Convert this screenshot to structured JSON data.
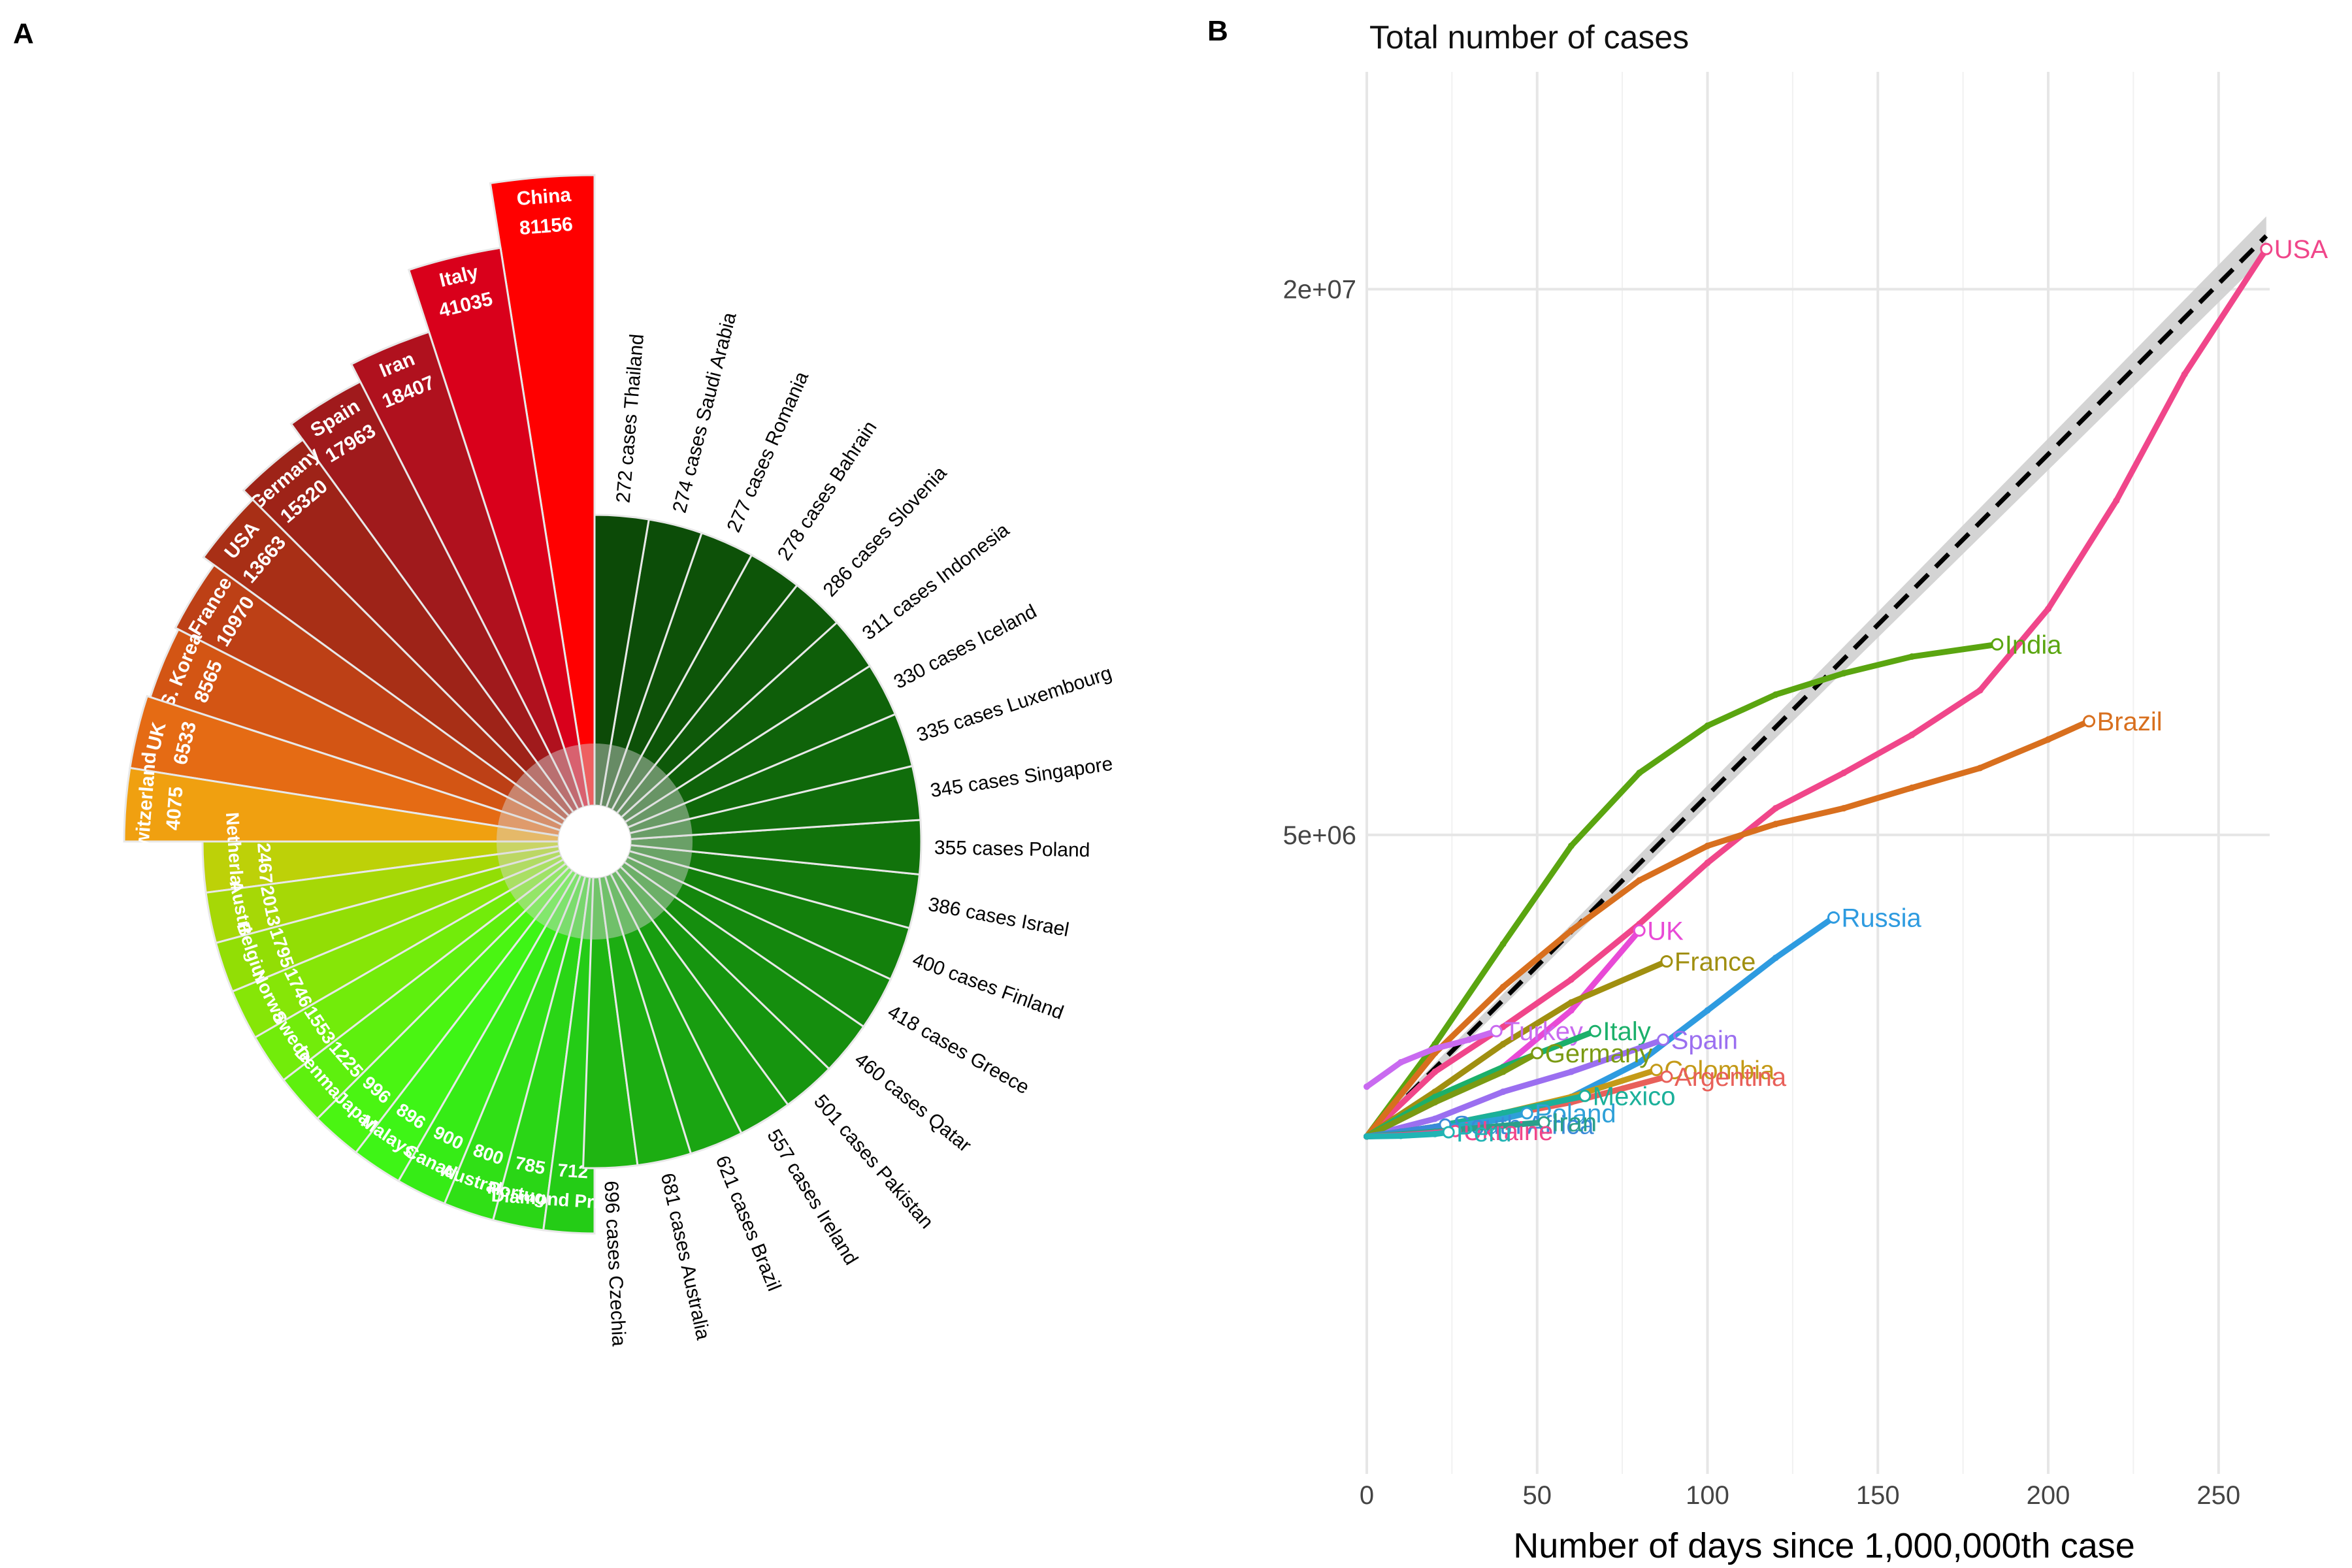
{
  "panel_a": {
    "label": "A",
    "chart_data": {
      "type": "bar",
      "polar": true,
      "top_countries": [
        {
          "name": "China",
          "value": 81156,
          "color": "#ff0000"
        },
        {
          "name": "Italy",
          "value": 41035,
          "color": "#d9001b"
        },
        {
          "name": "Iran",
          "value": 18407,
          "color": "#b0111e"
        },
        {
          "name": "Spain",
          "value": 17963,
          "color": "#a01a1c"
        },
        {
          "name": "Germany",
          "value": 15320,
          "color": "#9e2318"
        },
        {
          "name": "USA",
          "value": 13663,
          "color": "#a82f16"
        },
        {
          "name": "France",
          "value": 10970,
          "color": "#bd4016"
        },
        {
          "name": "S. Korea",
          "value": 8565,
          "color": "#d35514"
        },
        {
          "name": "UK",
          "value": 6533,
          "color": "#e56b14"
        },
        {
          "name": "Switzerland",
          "value": 4075,
          "color": "#f0a010"
        }
      ],
      "green_countries": [
        {
          "name": "Netherlands",
          "value": 2467,
          "color": "#bdd108"
        },
        {
          "name": "Austria",
          "value": 2013,
          "color": "#a6d806"
        },
        {
          "name": "Belgium",
          "value": 1795,
          "color": "#92de05"
        },
        {
          "name": "Norway",
          "value": 1746,
          "color": "#86e607"
        },
        {
          "name": "Sweden",
          "value": 1553,
          "color": "#72ec0a"
        },
        {
          "name": "Denmark",
          "value": 1225,
          "color": "#5ef00e"
        },
        {
          "name": "Japan",
          "value": 996,
          "color": "#4af512"
        },
        {
          "name": "Malaysia",
          "value": 896,
          "color": "#3ef516"
        },
        {
          "name": "Canada",
          "value": 900,
          "color": "#36ec16"
        },
        {
          "name": "Australia",
          "value": 800,
          "color": "#30e016"
        },
        {
          "name": "Portugal",
          "value": 785,
          "color": "#2ad616"
        },
        {
          "name": "Diamond Princess",
          "value": 712,
          "color": "#24cc16"
        }
      ],
      "dark_countries_labels": [
        "696 cases Czechia",
        "681 cases Australia",
        "621 cases Brazil",
        "557 cases Ireland",
        "501 cases Pakistan",
        "460 cases Qatar",
        "418 cases Greece",
        "400 cases Finland",
        "386 cases Israel",
        "355 cases Poland",
        "345 cases Singapore",
        "335 cases Luxembourg",
        "330 cases Iceland",
        "311 cases Indonesia",
        "286 cases Slovenia",
        "278 cases Bahrain",
        "277 cases Romania",
        "274 cases Saudi Arabia",
        "272 cases Thailand"
      ]
    }
  },
  "panel_b": {
    "label": "B",
    "chart_data": {
      "type": "line",
      "title": "Total number of cases",
      "xlabel": "Number of days since 1,000,000th case",
      "ylabel": "",
      "xlim": [
        0,
        265
      ],
      "x_ticks": [
        0,
        50,
        100,
        150,
        200,
        250
      ],
      "y_ticks": [
        {
          "value": 5000000,
          "label": "5e+06"
        },
        {
          "value": 20000000,
          "label": "2e+07"
        }
      ],
      "y_scale": "sqrt",
      "trend": {
        "name": "",
        "x": [
          0,
          264
        ],
        "y": [
          1000000,
          22000000
        ],
        "style": "dashed black with grey confidence band"
      },
      "series": [
        {
          "name": "USA",
          "color": "#f0468a",
          "x": [
            0,
            20,
            40,
            60,
            80,
            100,
            120,
            140,
            160,
            180,
            200,
            220,
            240,
            264
          ],
          "y": [
            1000000,
            1600000,
            2100000,
            2700000,
            3500000,
            4500000,
            5500000,
            6200000,
            7000000,
            8000000,
            10000000,
            13000000,
            17000000,
            21500000
          ]
        },
        {
          "name": "India",
          "color": "#5aa510",
          "x": [
            0,
            20,
            40,
            60,
            80,
            100,
            120,
            140,
            160,
            185
          ],
          "y": [
            1000000,
            1900000,
            3200000,
            4800000,
            6200000,
            7200000,
            7900000,
            8400000,
            8800000,
            9100000
          ]
        },
        {
          "name": "Brazil",
          "color": "#d86f1e",
          "x": [
            0,
            20,
            40,
            60,
            80,
            100,
            120,
            140,
            160,
            180,
            200,
            212
          ],
          "y": [
            1000000,
            1800000,
            2600000,
            3400000,
            4200000,
            4800000,
            5200000,
            5500000,
            5900000,
            6300000,
            6900000,
            7300000
          ]
        },
        {
          "name": "Russia",
          "color": "#2e9be0",
          "x": [
            0,
            20,
            40,
            60,
            80,
            100,
            120,
            137
          ],
          "y": [
            1000000,
            1050000,
            1150000,
            1350000,
            1700000,
            2300000,
            3000000,
            3600000
          ]
        },
        {
          "name": "UK",
          "color": "#e84ad6",
          "x": [
            0,
            20,
            40,
            60,
            80
          ],
          "y": [
            1000000,
            1300000,
            1650000,
            2300000,
            3400000
          ]
        },
        {
          "name": "France",
          "color": "#a08f10",
          "x": [
            0,
            20,
            40,
            60,
            88
          ],
          "y": [
            1000000,
            1400000,
            1900000,
            2400000,
            2950000
          ]
        },
        {
          "name": "Turkey",
          "color": "#c96af0",
          "x": [
            0,
            10,
            20,
            30,
            38
          ],
          "y": [
            1450000,
            1700000,
            1850000,
            1950000,
            2050000
          ]
        },
        {
          "name": "Italy",
          "color": "#1bb06a",
          "x": [
            0,
            20,
            40,
            67
          ],
          "y": [
            1000000,
            1350000,
            1650000,
            2050000
          ]
        },
        {
          "name": "Spain",
          "color": "#9b6ff0",
          "x": [
            0,
            20,
            40,
            60,
            87
          ],
          "y": [
            1000000,
            1150000,
            1400000,
            1600000,
            1950000
          ]
        },
        {
          "name": "Germany",
          "color": "#7a9a12",
          "x": [
            0,
            20,
            40,
            50
          ],
          "y": [
            1000000,
            1300000,
            1600000,
            1800000
          ]
        },
        {
          "name": "Colombia",
          "color": "#c49a18",
          "x": [
            0,
            20,
            40,
            60,
            85
          ],
          "y": [
            1000000,
            1080000,
            1200000,
            1350000,
            1620000
          ]
        },
        {
          "name": "Argentina",
          "color": "#e8605a",
          "x": [
            0,
            20,
            40,
            60,
            88
          ],
          "y": [
            1000000,
            1080000,
            1180000,
            1300000,
            1550000
          ]
        },
        {
          "name": "Mexico",
          "color": "#1bb09a",
          "x": [
            0,
            20,
            40,
            64
          ],
          "y": [
            1000000,
            1080000,
            1200000,
            1360000
          ]
        },
        {
          "name": "Poland",
          "color": "#2ea0d8",
          "x": [
            0,
            20,
            40,
            47
          ],
          "y": [
            1000000,
            1060000,
            1150000,
            1200000
          ]
        },
        {
          "name": "South Africa",
          "color": "#3a8ad8",
          "x": [
            0,
            10,
            20,
            23
          ],
          "y": [
            1000000,
            1040000,
            1080000,
            1100000
          ]
        },
        {
          "name": "Iran",
          "color": "#2aa08a",
          "x": [
            0,
            20,
            40,
            52
          ],
          "y": [
            1000000,
            1040000,
            1090000,
            1120000
          ]
        },
        {
          "name": "Ukraine",
          "color": "#f0468a",
          "x": [
            0,
            10,
            20,
            26
          ],
          "y": [
            1000000,
            1010000,
            1030000,
            1045000
          ]
        },
        {
          "name": "Peru",
          "color": "#20b4b4",
          "x": [
            0,
            10,
            20,
            24
          ],
          "y": [
            1000000,
            1005000,
            1020000,
            1035000
          ]
        }
      ]
    }
  }
}
